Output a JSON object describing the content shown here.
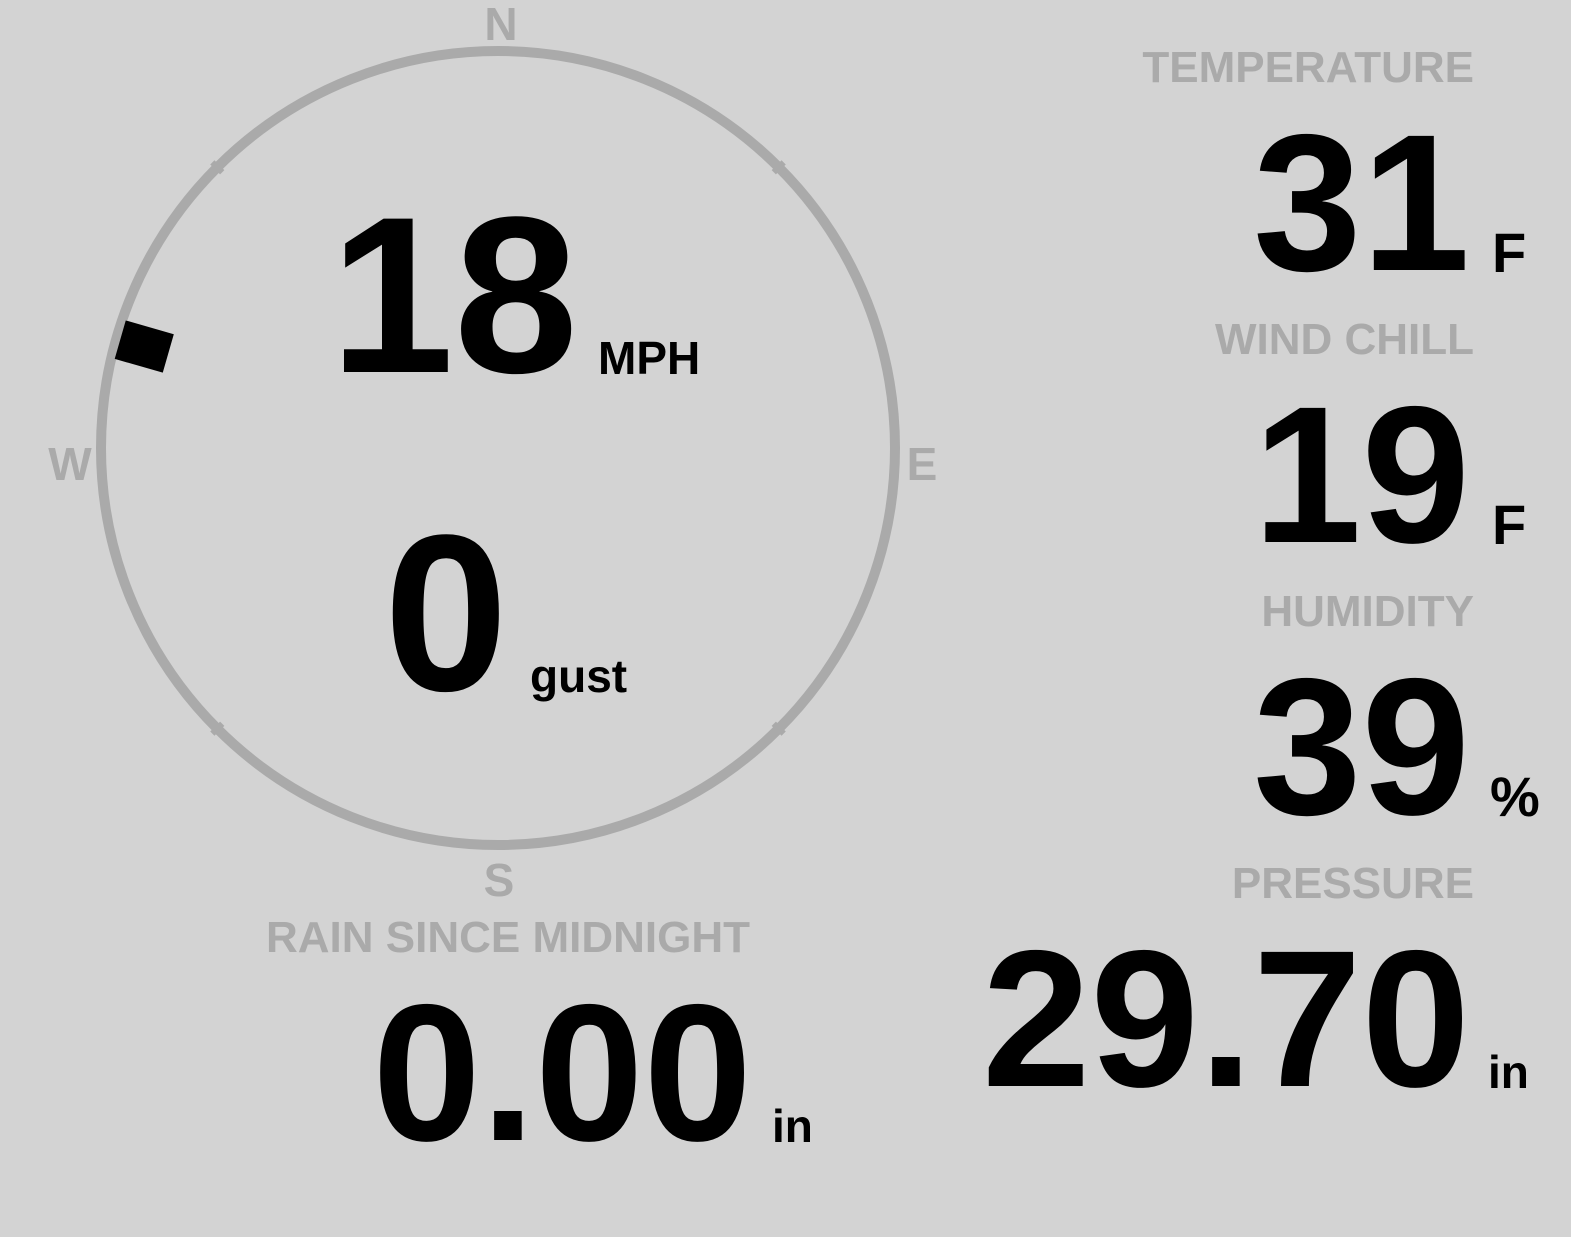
{
  "colors": {
    "background": "#d3d3d3",
    "label": "#aaaaaa",
    "value": "#000000",
    "ring": "#aaaaaa"
  },
  "wind": {
    "speed": "18",
    "speed_unit": "MPH",
    "gust": "0",
    "gust_unit": "gust",
    "direction_degrees": 286,
    "compass": {
      "n": "N",
      "e": "E",
      "s": "S",
      "w": "W"
    }
  },
  "temperature": {
    "label": "TEMPERATURE",
    "value": "31",
    "unit": "F"
  },
  "wind_chill": {
    "label": "WIND CHILL",
    "value": "19",
    "unit": "F"
  },
  "humidity": {
    "label": "HUMIDITY",
    "value": "39",
    "unit": "%"
  },
  "rain": {
    "label": "RAIN SINCE MIDNIGHT",
    "value": "0.00",
    "unit": "in"
  },
  "pressure": {
    "label": "PRESSURE",
    "value": "29.70",
    "unit": "in"
  }
}
